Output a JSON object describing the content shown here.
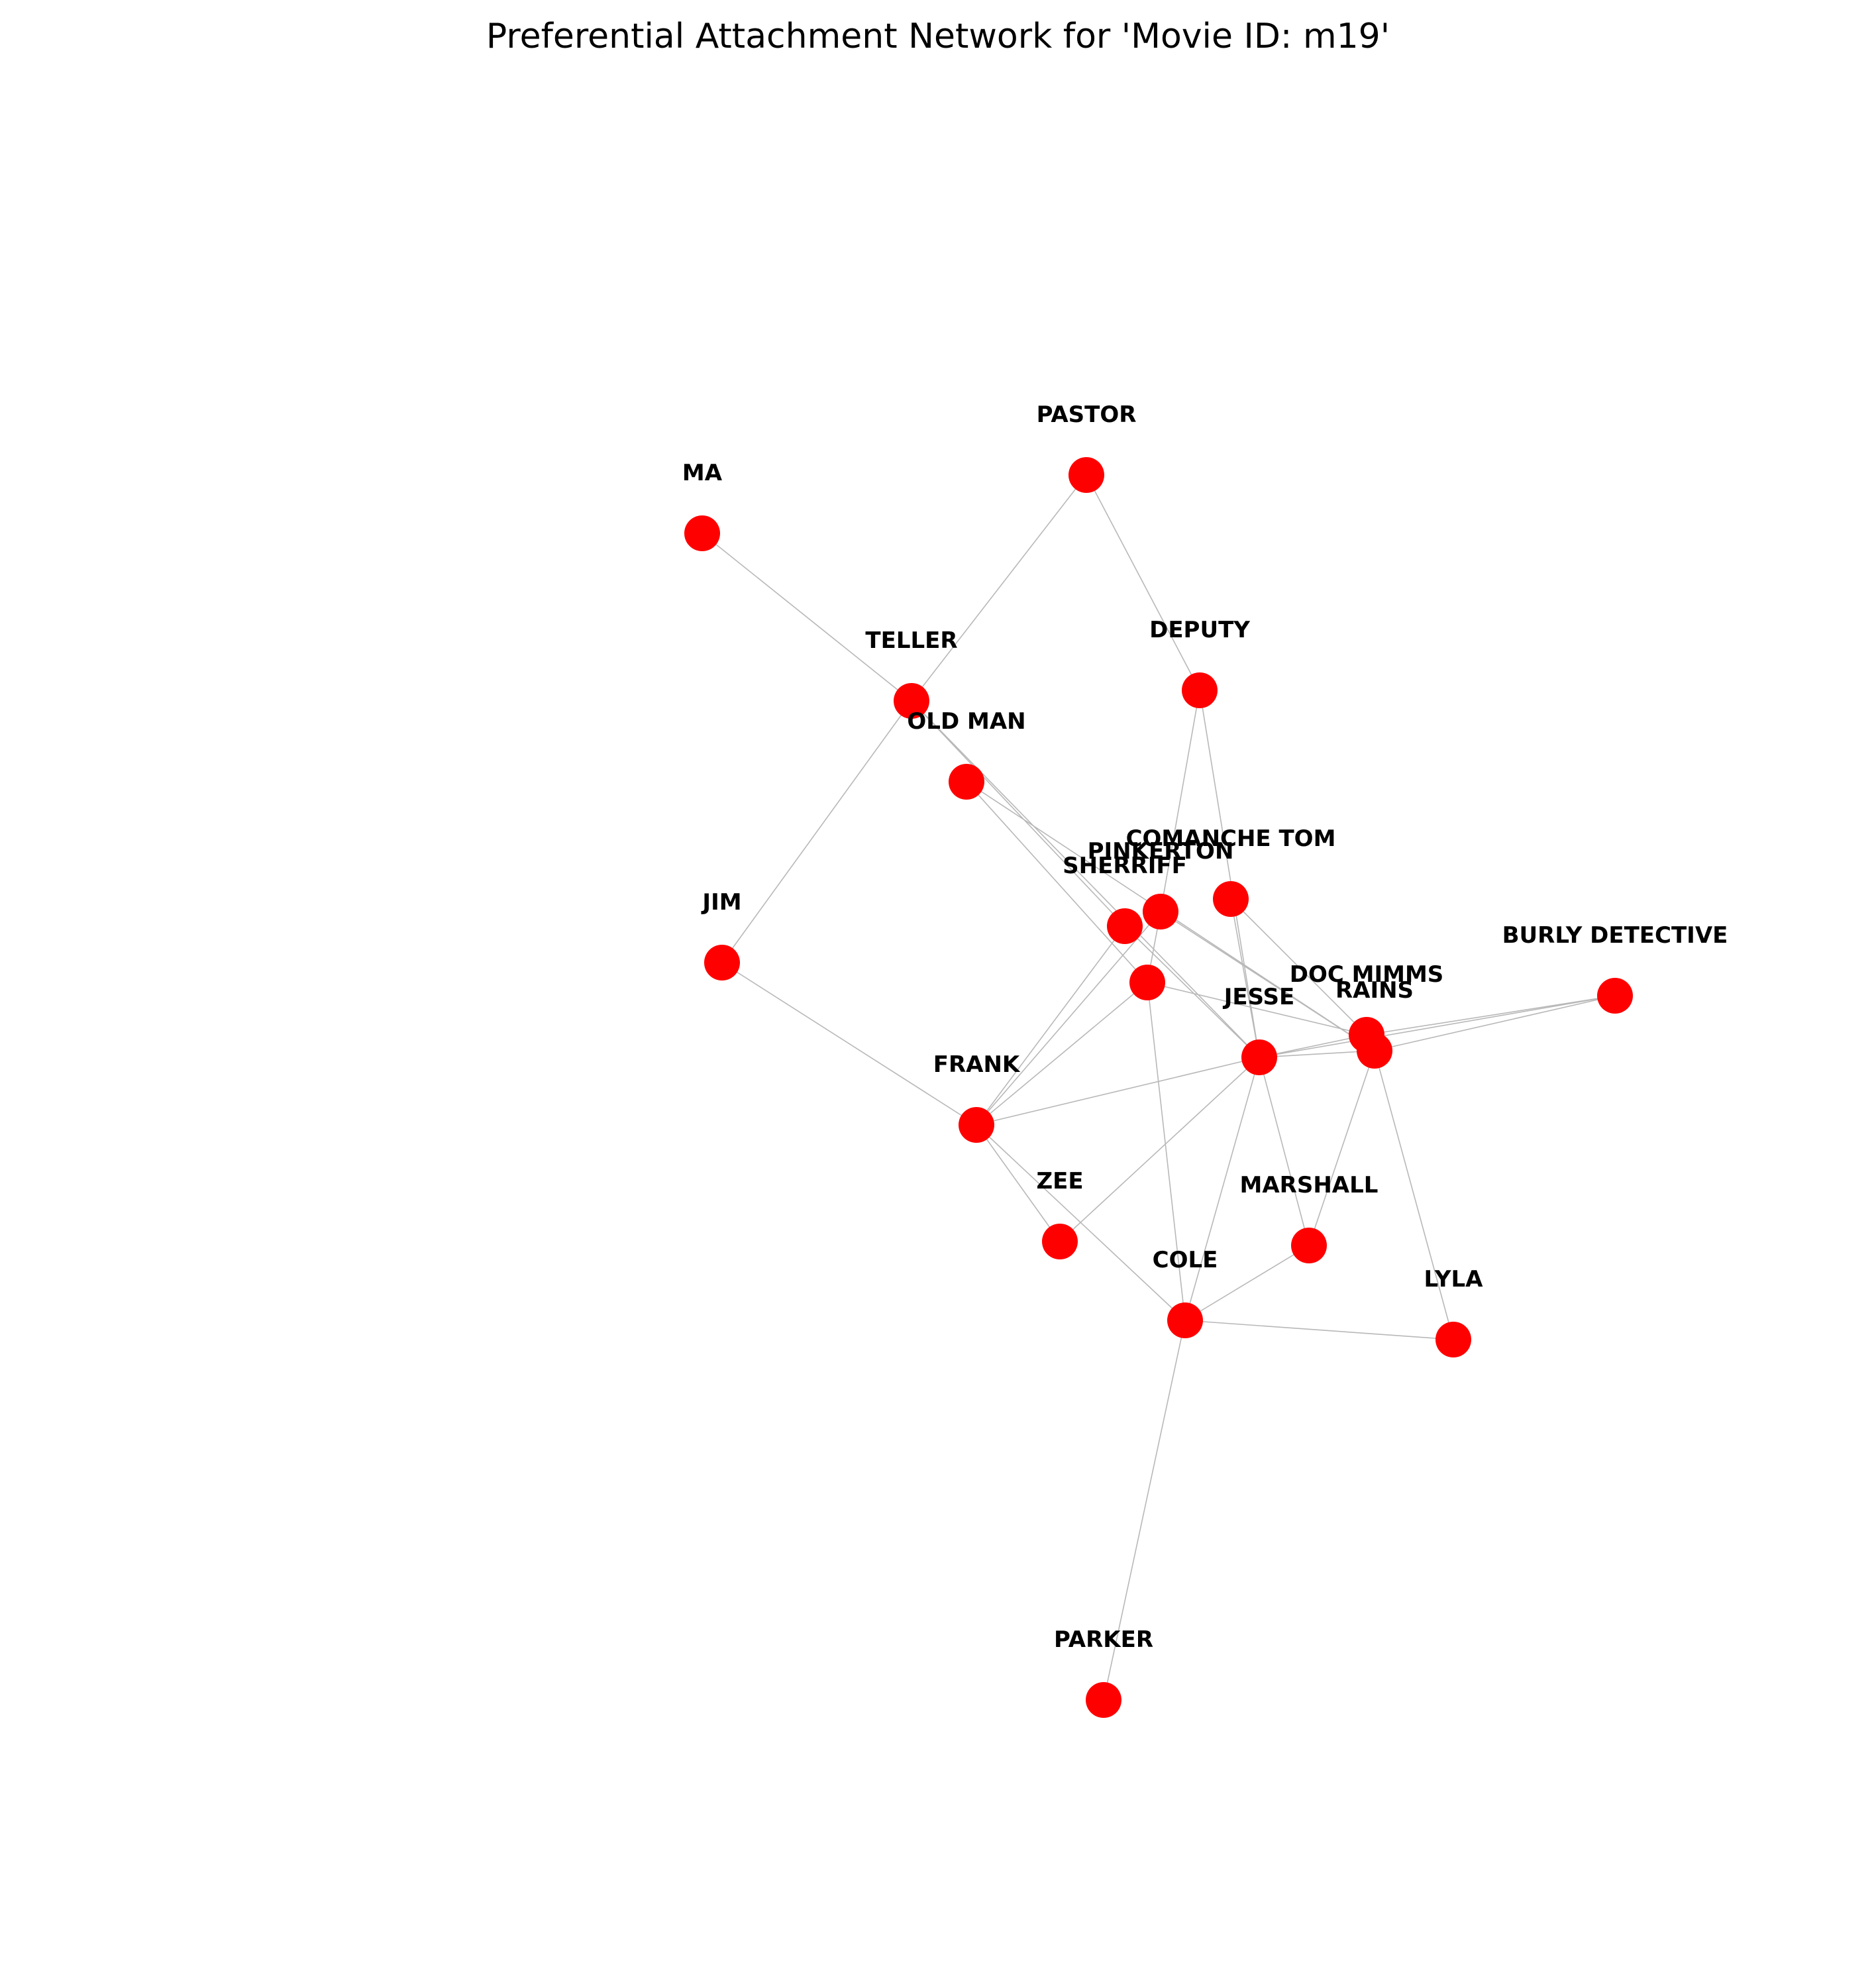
{
  "title": "Preferential Attachment Network for 'Movie ID: m19'",
  "node_color": "#ff0000",
  "edge_color": "#b8b8b8",
  "nodes": [
    {
      "id": "MA",
      "label": "MA"
    },
    {
      "id": "PASTOR",
      "label": "PASTOR"
    },
    {
      "id": "TELLER",
      "label": "TELLER"
    },
    {
      "id": "DEPUTY",
      "label": "DEPUTY"
    },
    {
      "id": "OLD_MAN",
      "label": "OLD MAN"
    },
    {
      "id": "COMANCHE_TOM",
      "label": "COMANCHE TOM"
    },
    {
      "id": "PINKERTON",
      "label": "PINKERTON"
    },
    {
      "id": "SHERRIFF",
      "label": "SHERRIFF"
    },
    {
      "id": "JIM",
      "label": "JIM"
    },
    {
      "id": "UNLABELED",
      "label": ""
    },
    {
      "id": "BURLY_DETECTIVE",
      "label": "BURLY DETECTIVE"
    },
    {
      "id": "DOC_MIMMS",
      "label": "DOC MIMMS"
    },
    {
      "id": "RAINS",
      "label": "RAINS"
    },
    {
      "id": "JESSE",
      "label": "JESSE"
    },
    {
      "id": "FRANK",
      "label": "FRANK"
    },
    {
      "id": "ZEE",
      "label": "ZEE"
    },
    {
      "id": "MARSHALL",
      "label": "MARSHALL"
    },
    {
      "id": "COLE",
      "label": "COLE"
    },
    {
      "id": "LYLA",
      "label": "LYLA"
    },
    {
      "id": "PARKER",
      "label": "PARKER"
    }
  ],
  "edges": [
    [
      "MA",
      "TELLER"
    ],
    [
      "PASTOR",
      "TELLER"
    ],
    [
      "PASTOR",
      "DEPUTY"
    ],
    [
      "TELLER",
      "JIM"
    ],
    [
      "TELLER",
      "JESSE"
    ],
    [
      "TELLER",
      "SHERRIFF"
    ],
    [
      "DEPUTY",
      "PINKERTON"
    ],
    [
      "DEPUTY",
      "JESSE"
    ],
    [
      "OLD_MAN",
      "UNLABELED"
    ],
    [
      "OLD_MAN",
      "RAINS"
    ],
    [
      "COMANCHE_TOM",
      "JESSE"
    ],
    [
      "COMANCHE_TOM",
      "DOC_MIMMS"
    ],
    [
      "PINKERTON",
      "UNLABELED"
    ],
    [
      "PINKERTON",
      "FRANK"
    ],
    [
      "PINKERTON",
      "RAINS"
    ],
    [
      "SHERRIFF",
      "JESSE"
    ],
    [
      "SHERRIFF",
      "FRANK"
    ],
    [
      "UNLABELED",
      "FRANK"
    ],
    [
      "UNLABELED",
      "COLE"
    ],
    [
      "UNLABELED",
      "DOC_MIMMS"
    ],
    [
      "JIM",
      "FRANK"
    ],
    [
      "BURLY_DETECTIVE",
      "JESSE"
    ],
    [
      "BURLY_DETECTIVE",
      "DOC_MIMMS"
    ],
    [
      "BURLY_DETECTIVE",
      "RAINS"
    ],
    [
      "DOC_MIMMS",
      "JESSE"
    ],
    [
      "RAINS",
      "JESSE"
    ],
    [
      "RAINS",
      "MARSHALL"
    ],
    [
      "RAINS",
      "LYLA"
    ],
    [
      "JESSE",
      "FRANK"
    ],
    [
      "JESSE",
      "ZEE"
    ],
    [
      "JESSE",
      "MARSHALL"
    ],
    [
      "JESSE",
      "COLE"
    ],
    [
      "FRANK",
      "ZEE"
    ],
    [
      "FRANK",
      "COLE"
    ],
    [
      "MARSHALL",
      "COLE"
    ],
    [
      "COLE",
      "LYLA"
    ],
    [
      "COLE",
      "PARKER"
    ]
  ]
}
